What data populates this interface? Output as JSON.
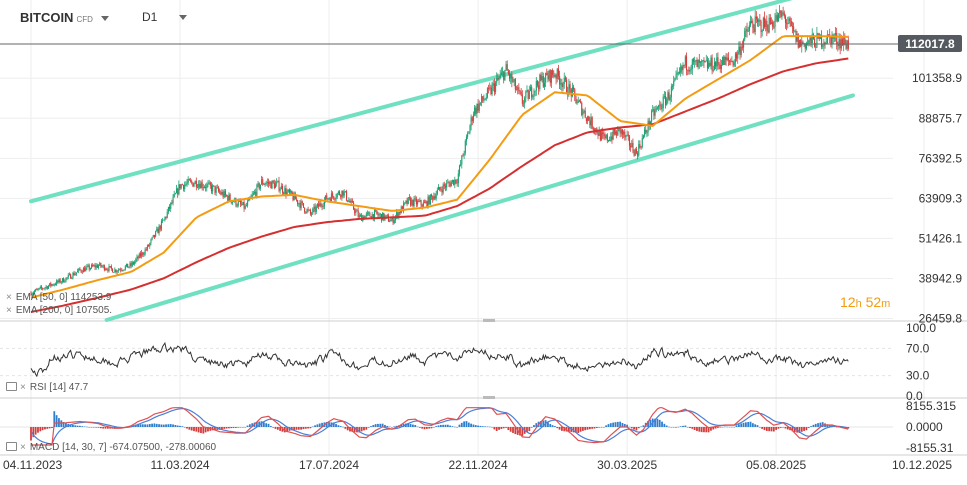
{
  "header": {
    "symbol": "BITCOIN",
    "symbol_suffix": "CFD",
    "timeframe": "D1"
  },
  "indicators": {
    "ema50_label": "EMA [50, 0]",
    "ema50_value": "114253.9",
    "ema200_label": "EMA [200, 0]",
    "ema200_value": "107505.",
    "rsi_label": "RSI [14]",
    "rsi_value": "47.7",
    "macd_label": "MACD [14, 30, 7]",
    "macd_value1": "-674.07500,",
    "macd_value2": "-278.00060"
  },
  "timer": {
    "hours": "12",
    "h_unit": "h",
    "minutes": "52",
    "m_unit": "m"
  },
  "colors": {
    "up": "#1aa071",
    "down": "#d33c3c",
    "ema50": "#f39c12",
    "ema200": "#d62f2f",
    "channel": "#6fe0c1",
    "price_label_bg": "#555a60",
    "rsi_line": "#333333",
    "macd_fast": "#e05050",
    "macd_slow": "#4a7fd8",
    "hist_pos": "#2f7fd0",
    "hist_neg": "#d33c3c"
  },
  "chart_data": {
    "type": "line",
    "subtype": "candlestick",
    "x_ticks": [
      "04.11.2023",
      "11.03.2024",
      "17.07.2024",
      "22.11.2024",
      "30.03.2025",
      "05.08.2025",
      "10.12.2025"
    ],
    "price_axis_ticks": [
      "101358.9",
      "88875.7",
      "76392.5",
      "63909.3",
      "51426.1",
      "38942.9",
      "26459.8"
    ],
    "current_price": "112017.8",
    "y_range": [
      26000,
      122000
    ],
    "channel_upper": [
      {
        "date": "04.11.2023",
        "price": 63000
      },
      {
        "date": "05.09.2025",
        "price": 128000
      }
    ],
    "channel_lower": [
      {
        "date": "08.01.2024",
        "price": 26000
      },
      {
        "date": "10.10.2025",
        "price": 96000
      }
    ],
    "price_path": [
      [
        "04.11.2023",
        34500
      ],
      [
        "18.11.2023",
        36500
      ],
      [
        "02.12.2023",
        38500
      ],
      [
        "16.12.2023",
        41500
      ],
      [
        "01.01.2024",
        43000
      ],
      [
        "15.01.2024",
        41500
      ],
      [
        "29.01.2024",
        43000
      ],
      [
        "12.02.2024",
        48500
      ],
      [
        "26.02.2024",
        57000
      ],
      [
        "11.03.2024",
        68000
      ],
      [
        "25.03.2024",
        69000
      ],
      [
        "08.04.2024",
        67000
      ],
      [
        "22.04.2024",
        64000
      ],
      [
        "06.05.2024",
        61000
      ],
      [
        "20.05.2024",
        69000
      ],
      [
        "03.06.2024",
        68000
      ],
      [
        "17.06.2024",
        64000
      ],
      [
        "01.07.2024",
        59000
      ],
      [
        "15.07.2024",
        64000
      ],
      [
        "29.07.2024",
        66000
      ],
      [
        "12.08.2024",
        58000
      ],
      [
        "26.08.2024",
        59000
      ],
      [
        "09.09.2024",
        57000
      ],
      [
        "23.09.2024",
        63000
      ],
      [
        "07.10.2024",
        62000
      ],
      [
        "21.10.2024",
        67000
      ],
      [
        "04.11.2024",
        70000
      ],
      [
        "18.11.2024",
        91000
      ],
      [
        "02.12.2024",
        97000
      ],
      [
        "16.12.2024",
        104000
      ],
      [
        "30.12.2024",
        94000
      ],
      [
        "13.01.2025",
        100000
      ],
      [
        "27.01.2025",
        103000
      ],
      [
        "10.02.2025",
        97000
      ],
      [
        "24.02.2025",
        89000
      ],
      [
        "10.03.2025",
        82000
      ],
      [
        "24.03.2025",
        85000
      ],
      [
        "07.04.2025",
        78000
      ],
      [
        "21.04.2025",
        90000
      ],
      [
        "05.05.2025",
        96000
      ],
      [
        "19.05.2025",
        106000
      ],
      [
        "02.06.2025",
        105000
      ],
      [
        "16.06.2025",
        106000
      ],
      [
        "30.06.2025",
        107000
      ],
      [
        "14.07.2025",
        118000
      ],
      [
        "28.07.2025",
        118000
      ],
      [
        "11.08.2025",
        121000
      ],
      [
        "25.08.2025",
        112000
      ],
      [
        "08.09.2025",
        113000
      ],
      [
        "22.09.2025",
        114000
      ],
      [
        "06.10.2025",
        112000
      ]
    ],
    "ema50_path": [
      [
        "04.11.2023",
        33000
      ],
      [
        "02.12.2023",
        35500
      ],
      [
        "01.01.2024",
        38500
      ],
      [
        "29.01.2024",
        41000
      ],
      [
        "26.02.2024",
        47000
      ],
      [
        "25.03.2024",
        58000
      ],
      [
        "22.04.2024",
        63000
      ],
      [
        "20.05.2024",
        64500
      ],
      [
        "17.06.2024",
        65000
      ],
      [
        "15.07.2024",
        63000
      ],
      [
        "12.08.2024",
        61500
      ],
      [
        "09.09.2024",
        60000
      ],
      [
        "07.10.2024",
        61000
      ],
      [
        "04.11.2024",
        63500
      ],
      [
        "02.12.2024",
        76000
      ],
      [
        "30.12.2024",
        90000
      ],
      [
        "27.01.2025",
        97000
      ],
      [
        "24.02.2025",
        96000
      ],
      [
        "24.03.2025",
        88000
      ],
      [
        "21.04.2025",
        86500
      ],
      [
        "19.05.2025",
        95000
      ],
      [
        "16.06.2025",
        101000
      ],
      [
        "14.07.2025",
        107000
      ],
      [
        "11.08.2025",
        114500
      ],
      [
        "08.09.2025",
        114500
      ],
      [
        "06.10.2025",
        114254
      ]
    ],
    "ema200_path": [
      [
        "04.11.2023",
        28500
      ],
      [
        "02.12.2023",
        30500
      ],
      [
        "01.01.2024",
        33000
      ],
      [
        "29.01.2024",
        35500
      ],
      [
        "26.02.2024",
        39000
      ],
      [
        "25.03.2024",
        44000
      ],
      [
        "22.04.2024",
        48500
      ],
      [
        "20.05.2024",
        52000
      ],
      [
        "17.06.2024",
        55000
      ],
      [
        "15.07.2024",
        56500
      ],
      [
        "12.08.2024",
        57500
      ],
      [
        "09.09.2024",
        58000
      ],
      [
        "07.10.2024",
        58500
      ],
      [
        "04.11.2024",
        61500
      ],
      [
        "02.12.2024",
        67000
      ],
      [
        "30.12.2024",
        74000
      ],
      [
        "27.01.2025",
        80500
      ],
      [
        "24.02.2025",
        84500
      ],
      [
        "24.03.2025",
        86000
      ],
      [
        "21.04.2025",
        87000
      ],
      [
        "19.05.2025",
        91000
      ],
      [
        "16.06.2025",
        95000
      ],
      [
        "14.07.2025",
        99500
      ],
      [
        "11.08.2025",
        103500
      ],
      [
        "08.09.2025",
        106000
      ],
      [
        "06.10.2025",
        107505
      ]
    ],
    "rsi": {
      "label": "RSI [14]",
      "current": 47.7,
      "y_range": [
        0,
        100
      ],
      "ticks": [
        "100.0",
        "70.0",
        "30.0",
        "0.0"
      ]
    },
    "macd": {
      "label": "MACD [14, 30, 7]",
      "macd": -674.075,
      "signal": -278.0006,
      "ticks": [
        "8155.315",
        "0.0000",
        "-8155.31"
      ]
    }
  }
}
